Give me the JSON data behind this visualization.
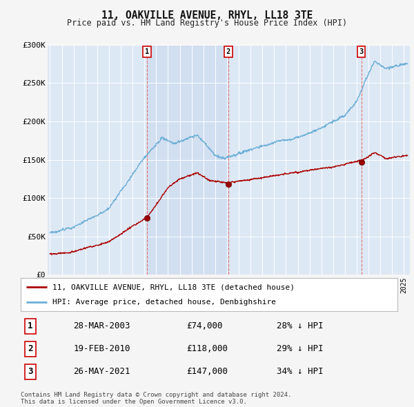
{
  "title": "11, OAKVILLE AVENUE, RHYL, LL18 3TE",
  "subtitle": "Price paid vs. HM Land Registry's House Price Index (HPI)",
  "ylim": [
    0,
    300000
  ],
  "xlim": [
    1994.8,
    2025.5
  ],
  "yticks": [
    0,
    50000,
    100000,
    150000,
    200000,
    250000,
    300000
  ],
  "ytick_labels": [
    "£0",
    "£50K",
    "£100K",
    "£150K",
    "£200K",
    "£250K",
    "£300K"
  ],
  "background_color": "#f5f5f5",
  "plot_bg_color": "#dde8f5",
  "shade_color": "#ccdcef",
  "grid_color": "#ffffff",
  "hpi_color": "#6baed6",
  "price_color": "#aa0000",
  "transactions": [
    {
      "num": 1,
      "date": "28-MAR-2003",
      "price": 74000,
      "pct": "28%",
      "year": 2003.23
    },
    {
      "num": 2,
      "date": "19-FEB-2010",
      "price": 118000,
      "pct": "29%",
      "year": 2010.12
    },
    {
      "num": 3,
      "date": "26-MAY-2021",
      "price": 147000,
      "pct": "34%",
      "year": 2021.38
    }
  ],
  "legend_entries": [
    {
      "label": "11, OAKVILLE AVENUE, RHYL, LL18 3TE (detached house)",
      "color": "#aa0000"
    },
    {
      "label": "HPI: Average price, detached house, Denbighshire",
      "color": "#6baed6"
    }
  ],
  "footer": "Contains HM Land Registry data © Crown copyright and database right 2024.\nThis data is licensed under the Open Government Licence v3.0.",
  "table_rows": [
    [
      "1",
      "28-MAR-2003",
      "£74,000",
      "28% ↓ HPI"
    ],
    [
      "2",
      "19-FEB-2010",
      "£118,000",
      "29% ↓ HPI"
    ],
    [
      "3",
      "26-MAY-2021",
      "£147,000",
      "34% ↓ HPI"
    ]
  ]
}
